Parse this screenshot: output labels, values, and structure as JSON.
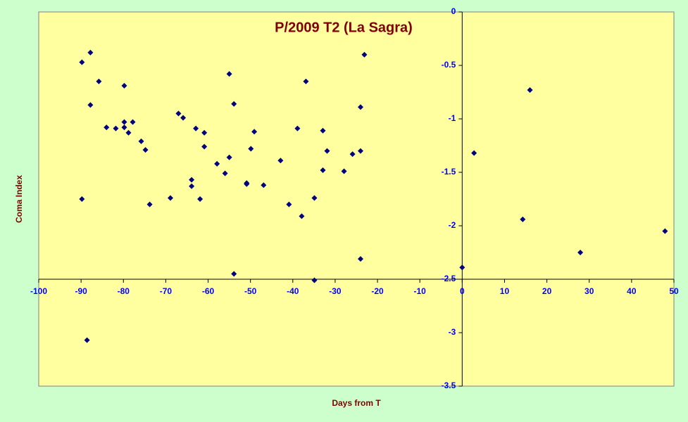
{
  "chart_data": {
    "type": "scatter",
    "title": "P/2009 T2 (La Sagra)",
    "x_label": "Days from T",
    "y_label": "Coma Index",
    "color": "#000080",
    "x": [
      -89.8,
      -87.8,
      -85.8,
      -87.8,
      -84.0,
      -81.8,
      -79.8,
      -79.8,
      -79.8,
      -78.8,
      -77.8,
      -75.8,
      -74.8,
      -73.8,
      -89.8,
      -88.6,
      -68.9,
      -67.0,
      -65.9,
      -63.9,
      -63.9,
      -62.9,
      -61.9,
      -60.9,
      -60.9,
      -57.9,
      -56.0,
      -55.0,
      -55.0,
      -53.9,
      -53.9,
      -50.9,
      -50.9,
      -49.9,
      -49.1,
      -46.9,
      -42.9,
      -40.9,
      -38.9,
      -37.9,
      -36.9,
      -34.9,
      -34.9,
      -32.9,
      -32.9,
      -31.9,
      -27.9,
      -25.9,
      -24.0,
      -24.0,
      -24.0,
      -23.1,
      0.0,
      2.8,
      14.3,
      16.0,
      27.9,
      47.9
    ],
    "values": [
      -0.47,
      -0.38,
      -0.65,
      -0.87,
      -1.08,
      -1.09,
      -0.69,
      -1.03,
      -1.08,
      -1.13,
      -1.03,
      -1.21,
      -1.29,
      -1.8,
      -1.75,
      -3.07,
      -1.74,
      -0.95,
      -0.99,
      -1.57,
      -1.63,
      -1.09,
      -1.75,
      -1.13,
      -1.26,
      -1.42,
      -1.51,
      -0.58,
      -1.36,
      -0.86,
      -2.45,
      -1.6,
      -1.61,
      -1.28,
      -1.12,
      -1.62,
      -1.39,
      -1.8,
      -1.09,
      -1.91,
      -0.65,
      -1.74,
      -2.51,
      -1.11,
      -1.48,
      -1.3,
      -1.49,
      -1.33,
      -0.89,
      -1.3,
      -2.31,
      -0.4,
      -2.39,
      -1.32,
      -1.94,
      -0.73,
      -2.25,
      -2.05
    ],
    "xlim": [
      -100,
      50
    ],
    "xticks": [
      -100,
      -90,
      -80,
      -70,
      -60,
      -50,
      -40,
      -30,
      -20,
      -10,
      0,
      10,
      20,
      30,
      40,
      50
    ],
    "ylim": [
      -3.5,
      0
    ],
    "yticks": [
      0,
      -0.5,
      -1,
      -1.5,
      -2,
      -2.5,
      -3,
      -3.5
    ],
    "x_axis_at": -2.5,
    "y_axis_at": 0
  }
}
